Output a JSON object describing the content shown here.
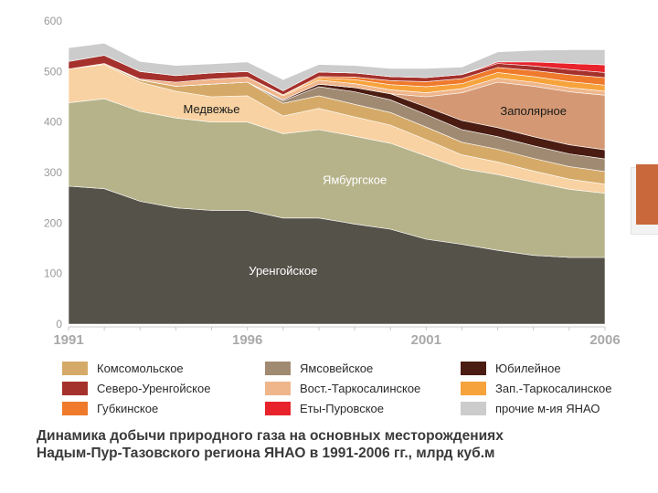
{
  "chart_data": {
    "type": "area",
    "stacked": true,
    "x": [
      1991,
      1992,
      1993,
      1994,
      1995,
      1996,
      1997,
      1998,
      1999,
      2000,
      2001,
      2002,
      2003,
      2004,
      2005,
      2006
    ],
    "ylim": [
      0,
      600
    ],
    "yticks": [
      0,
      100,
      200,
      300,
      400,
      500,
      600
    ],
    "xticks": [
      1991,
      1996,
      2001,
      2006
    ],
    "grid": false,
    "series": [
      {
        "name": "Уренгойское",
        "label": "Уренгойское",
        "color": "#55524a",
        "text_color": "#ffffff",
        "values": [
          273,
          268,
          243,
          230,
          225,
          225,
          210,
          210,
          198,
          188,
          168,
          158,
          146,
          136,
          132,
          132
        ]
      },
      {
        "name": "Ямбургское",
        "label": "Ямбургское",
        "color": "#b6b38b",
        "text_color": "#ffffff",
        "values": [
          165,
          178,
          178,
          178,
          175,
          175,
          167,
          175,
          174,
          170,
          165,
          150,
          150,
          145,
          135,
          127
        ]
      },
      {
        "name": "Медвежье",
        "label": "Медвежье",
        "color": "#f8d2a2",
        "text_color": "#1a1a1a",
        "values": [
          67,
          68,
          58,
          53,
          50,
          52,
          35,
          42,
          38,
          36,
          32,
          27,
          25,
          22,
          20,
          18
        ]
      },
      {
        "name": "Комсомольское",
        "color": "#d5aa68",
        "values": [
          0,
          2,
          4,
          10,
          25,
          27,
          25,
          25,
          25,
          25,
          25,
          25,
          25,
          25,
          25,
          25
        ]
      },
      {
        "name": "Ямсовейское",
        "color": "#a08a72",
        "values": [
          0,
          0,
          0,
          0,
          0,
          0,
          5,
          18,
          25,
          25,
          25,
          25,
          25,
          25,
          25,
          25
        ]
      },
      {
        "name": "Юбилейное",
        "color": "#4a1c12",
        "values": [
          0,
          0,
          0,
          0,
          0,
          0,
          2,
          5,
          8,
          12,
          15,
          18,
          18,
          18,
          18,
          18
        ]
      },
      {
        "name": "Заполярное",
        "label": "Заполярное",
        "color": "#d49974",
        "text_color": "#1a1a1a",
        "values": [
          0,
          0,
          0,
          0,
          0,
          0,
          0,
          0,
          0,
          0,
          20,
          55,
          90,
          100,
          105,
          108
        ]
      },
      {
        "name": "Вост.-Таркосалинское",
        "color": "#efb68c",
        "values": [
          0,
          0,
          2,
          8,
          10,
          10,
          8,
          8,
          8,
          8,
          8,
          8,
          8,
          8,
          8,
          8
        ]
      },
      {
        "name": "Зап.-Таркосалинское",
        "color": "#f7a33c",
        "values": [
          0,
          0,
          0,
          0,
          0,
          0,
          2,
          4,
          8,
          10,
          12,
          10,
          11,
          11,
          12,
          12
        ]
      },
      {
        "name": "Губкинское",
        "color": "#ef7a2c",
        "values": [
          0,
          0,
          0,
          0,
          0,
          0,
          0,
          3,
          5,
          8,
          10,
          10,
          10,
          12,
          14,
          15
        ]
      },
      {
        "name": "Северо-Уренгойское",
        "color": "#a5312c",
        "values": [
          15,
          16,
          15,
          13,
          12,
          11,
          8,
          9,
          8,
          8,
          8,
          8,
          8,
          9,
          10,
          10
        ]
      },
      {
        "name": "Еты-Пуровское",
        "color": "#e8232b",
        "values": [
          0,
          0,
          0,
          0,
          0,
          0,
          0,
          0,
          0,
          0,
          0,
          0,
          3,
          8,
          12,
          15
        ]
      },
      {
        "name": "прочие м-ия ЯНАО",
        "color": "#cccccc",
        "values": [
          27,
          24,
          20,
          20,
          18,
          19,
          22,
          15,
          15,
          16,
          18,
          15,
          20,
          23,
          27,
          30
        ]
      }
    ]
  },
  "legend": [
    {
      "label": "Комсомольское",
      "color": "#d5aa68"
    },
    {
      "label": "Северо-Уренгойское",
      "color": "#a5312c"
    },
    {
      "label": "Губкинское",
      "color": "#ef7a2c"
    },
    {
      "label": "Ямсовейское",
      "color": "#a08a72"
    },
    {
      "label": "Вост.-Таркосалинское",
      "color": "#efb68c"
    },
    {
      "label": "Еты-Пуровское",
      "color": "#e8232b"
    },
    {
      "label": "Юбилейное",
      "color": "#4a1c12"
    },
    {
      "label": "Зап.-Таркосалинское",
      "color": "#f7a33c"
    },
    {
      "label": "прочие м-ия ЯНАО",
      "color": "#cccccc"
    }
  ],
  "caption": {
    "line1": "Динамика добычи природного газа на основных месторождениях",
    "line2": "Надым-Пур-Тазовского региона ЯНАО в 1991-2006 гг., млрд куб.м"
  },
  "decor": {
    "accent": "#c9683a"
  }
}
